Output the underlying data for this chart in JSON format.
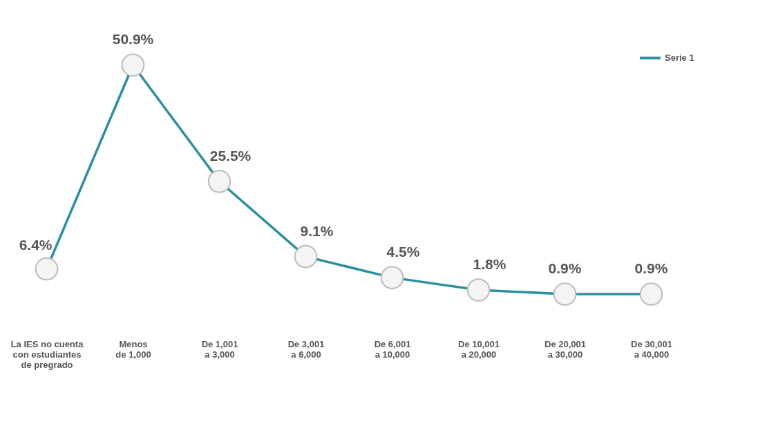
{
  "chart_data": {
    "type": "line",
    "categories": [
      "La IES no cuenta\ncon estudiantes\nde pregrado",
      "Menos\nde 1,000",
      "De 1,001\na 3,000",
      "De 3,001\na 6,000",
      "De 6,001\na 10,000",
      "De 10,001\na 20,000",
      "De 20,001\na 30,000",
      "De 30,001\na 40,000"
    ],
    "series": [
      {
        "name": "Serie 1",
        "color": "#2a8fa0",
        "values": [
          6.4,
          50.9,
          25.5,
          9.1,
          4.5,
          1.8,
          0.9,
          0.9
        ],
        "value_labels": [
          "6.4%",
          "50.9%",
          "25.5%",
          "9.1%",
          "4.5%",
          "1.8%",
          "0.9%",
          "0.9%"
        ]
      }
    ],
    "legend": "top right",
    "marker": "circle",
    "line_style": "solid",
    "grid": false
  }
}
